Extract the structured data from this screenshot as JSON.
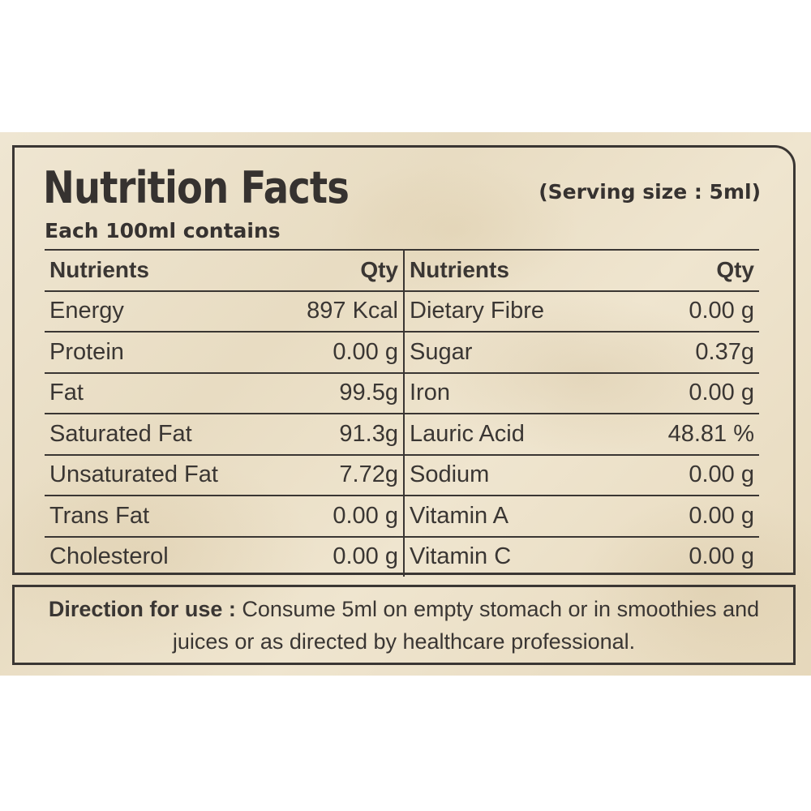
{
  "label": {
    "title": "Nutrition Facts",
    "serving_size": "(Serving size : 5ml)",
    "subtitle": "Each 100ml contains",
    "table": {
      "headers": [
        "Nutrients",
        "Qty",
        "Nutrients",
        "Qty"
      ],
      "rows": [
        [
          "Energy",
          "897 Kcal",
          "Dietary Fibre",
          "0.00 g"
        ],
        [
          "Protein",
          "0.00 g",
          "Sugar",
          "0.37g"
        ],
        [
          "Fat",
          "99.5g",
          "Iron",
          "0.00 g"
        ],
        [
          "Saturated Fat",
          "91.3g",
          "Lauric Acid",
          "48.81 %"
        ],
        [
          "Unsaturated Fat",
          "7.72g",
          "Sodium",
          "0.00 g"
        ],
        [
          "Trans Fat",
          "0.00 g",
          "Vitamin A",
          "0.00 g"
        ],
        [
          "Cholesterol",
          "0.00 g",
          "Vitamin C",
          "0.00 g"
        ]
      ]
    },
    "direction": {
      "label": "Direction for use :",
      "text": "Consume 5ml on empty stomach or in smoothies and juices or as directed by healthcare professional."
    }
  },
  "colors": {
    "ink": "#3a3633",
    "paper": "#ebe0c8"
  }
}
